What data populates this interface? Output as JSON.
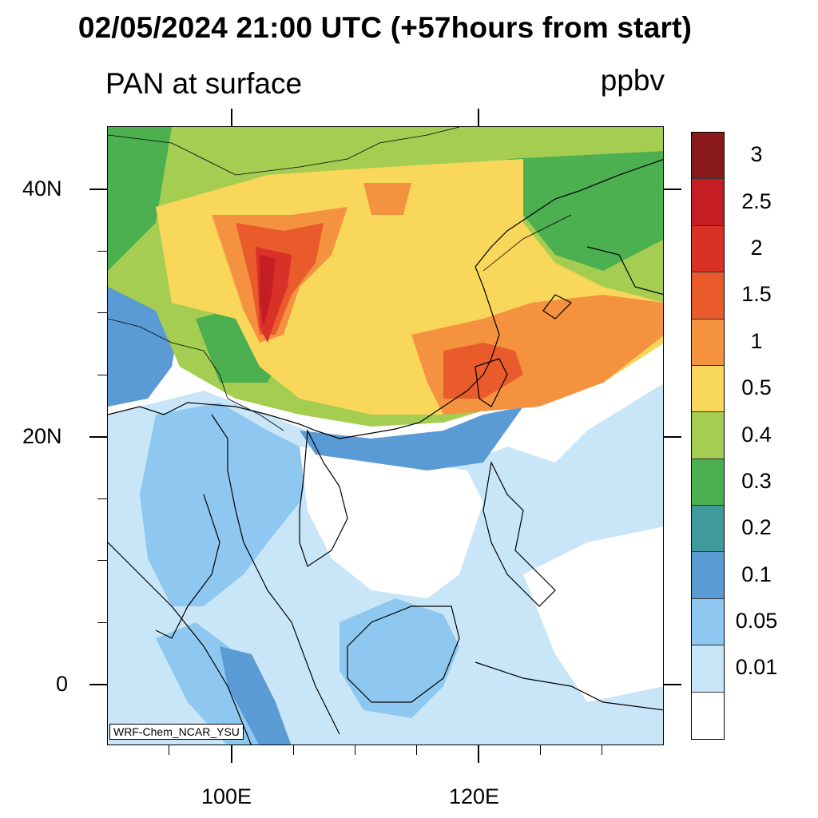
{
  "title": "02/05/2024 21:00 UTC (+57hours from start)",
  "subtitle": "PAN at surface",
  "units": "ppbv",
  "credit": "WRF-Chem_NCAR_YSU",
  "lat_labels": [
    "40N",
    "20N",
    "0"
  ],
  "lon_labels": [
    "100E",
    "120E"
  ],
  "colorbar": {
    "levels": [
      "3",
      "2.5",
      "2",
      "1.5",
      "1",
      "0.5",
      "0.4",
      "0.3",
      "0.2",
      "0.1",
      "0.05",
      "0.01"
    ],
    "colors": [
      "#8b1a1a",
      "#c41e24",
      "#d93028",
      "#e95b2b",
      "#f4923f",
      "#f8d75a",
      "#a4cd52",
      "#4caf50",
      "#3f9b9b",
      "#5b9bd5",
      "#8ec7ef",
      "#c8e6f7",
      "#ffffff"
    ]
  }
}
